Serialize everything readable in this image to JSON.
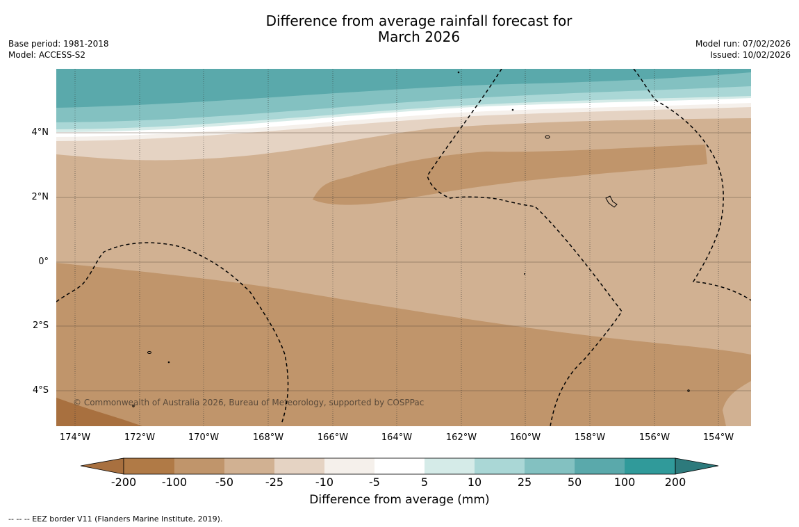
{
  "title": {
    "line1": "Difference from average rainfall forecast for",
    "line2": "March 2026"
  },
  "meta": {
    "base_period": "Base period: 1981-2018",
    "model": "Model: ACCESS-S2",
    "model_run": "Model run: 07/02/2026",
    "issued": "Issued: 10/02/2026"
  },
  "map": {
    "lat_labels": [
      "4°N",
      "2°N",
      "0°",
      "2°S",
      "4°S"
    ],
    "lon_labels": [
      "174°W",
      "172°W",
      "170°W",
      "168°W",
      "166°W",
      "164°W",
      "162°W",
      "160°W",
      "158°W",
      "156°W",
      "154°W"
    ],
    "copyright": "© Commonwealth of Australia 2026, Bureau of Meteorology, supported by COSPPac"
  },
  "colorbar": {
    "ticks": [
      "-200",
      "-100",
      "-50",
      "-25",
      "-10",
      "-5",
      "5",
      "10",
      "25",
      "50",
      "100",
      "200"
    ],
    "colors": [
      "#a8703f",
      "#b07a46",
      "#c0956b",
      "#d1b192",
      "#e5d3c3",
      "#f5f0eb",
      "#ffffff",
      "#d5ebe8",
      "#aad7d6",
      "#83c1c1",
      "#5aa9ab",
      "#309a9a",
      "#2d7a7c"
    ],
    "title": "Difference from average (mm)"
  },
  "footer": {
    "legend": "--  --  -- EEZ border V11 (Flanders Marine Institute, 2019)."
  }
}
